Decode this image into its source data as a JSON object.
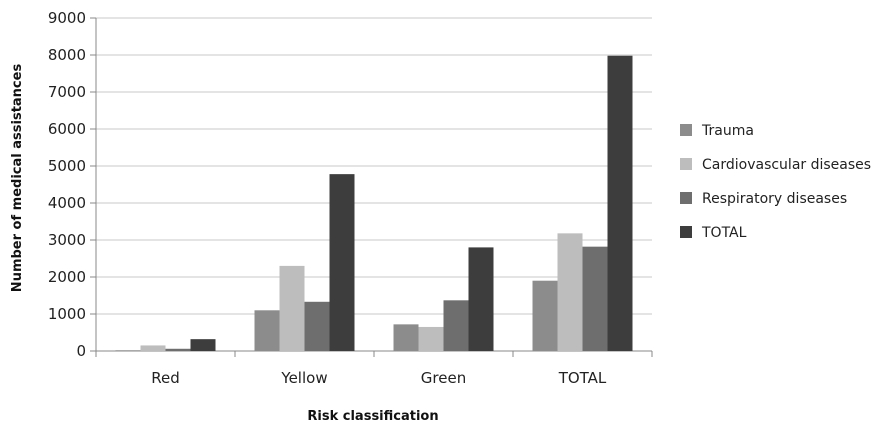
{
  "chart_data": {
    "type": "bar",
    "categories": [
      "Red",
      "Yellow",
      "Green",
      "TOTAL"
    ],
    "series": [
      {
        "name": "Trauma",
        "values": [
          20,
          1100,
          720,
          1900
        ],
        "color": "#8c8c8c"
      },
      {
        "name": "Cardiovascular diseases",
        "values": [
          150,
          2300,
          650,
          3180
        ],
        "color": "#bdbdbd"
      },
      {
        "name": "Respiratory diseases",
        "values": [
          60,
          1330,
          1370,
          2820
        ],
        "color": "#6e6e6e"
      },
      {
        "name": "TOTAL",
        "values": [
          320,
          4780,
          2800,
          7980
        ],
        "color": "#3d3d3d"
      }
    ],
    "ylim": [
      0,
      9000
    ],
    "yticks": [
      0,
      1000,
      2000,
      3000,
      4000,
      5000,
      6000,
      7000,
      8000,
      9000
    ],
    "xlabel": "Risk classification",
    "ylabel": "Number of medical assistances",
    "grid": true,
    "legend_position": "right"
  }
}
